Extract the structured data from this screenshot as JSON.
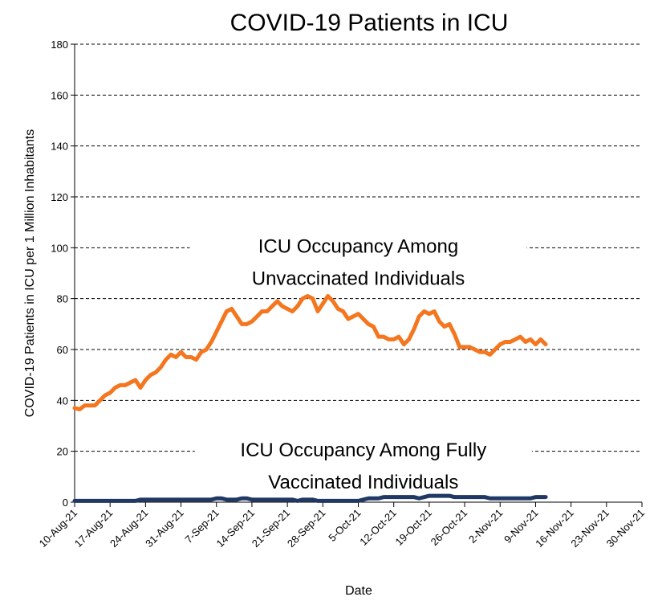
{
  "chart_data": {
    "type": "line",
    "title": "COVID-19 Patients in ICU",
    "x_label": "Date",
    "y_label": "COVID-19 Patients in ICU  per 1 Million Inhabitants",
    "x": [
      "10-Aug-21",
      "11-Aug-21",
      "12-Aug-21",
      "13-Aug-21",
      "14-Aug-21",
      "15-Aug-21",
      "16-Aug-21",
      "17-Aug-21",
      "18-Aug-21",
      "19-Aug-21",
      "20-Aug-21",
      "21-Aug-21",
      "22-Aug-21",
      "23-Aug-21",
      "24-Aug-21",
      "25-Aug-21",
      "26-Aug-21",
      "27-Aug-21",
      "28-Aug-21",
      "29-Aug-21",
      "30-Aug-21",
      "31-Aug-21",
      "1-Sep-21",
      "2-Sep-21",
      "3-Sep-21",
      "4-Sep-21",
      "5-Sep-21",
      "6-Sep-21",
      "7-Sep-21",
      "8-Sep-21",
      "9-Sep-21",
      "10-Sep-21",
      "11-Sep-21",
      "12-Sep-21",
      "13-Sep-21",
      "14-Sep-21",
      "15-Sep-21",
      "16-Sep-21",
      "17-Sep-21",
      "18-Sep-21",
      "19-Sep-21",
      "20-Sep-21",
      "21-Sep-21",
      "22-Sep-21",
      "23-Sep-21",
      "24-Sep-21",
      "25-Sep-21",
      "26-Sep-21",
      "27-Sep-21",
      "28-Sep-21",
      "29-Sep-21",
      "30-Sep-21",
      "1-Oct-21",
      "2-Oct-21",
      "3-Oct-21",
      "4-Oct-21",
      "5-Oct-21",
      "6-Oct-21",
      "7-Oct-21",
      "8-Oct-21",
      "9-Oct-21",
      "10-Oct-21",
      "11-Oct-21",
      "12-Oct-21",
      "13-Oct-21",
      "14-Oct-21",
      "15-Oct-21",
      "16-Oct-21",
      "17-Oct-21",
      "18-Oct-21",
      "19-Oct-21",
      "20-Oct-21",
      "21-Oct-21",
      "22-Oct-21",
      "23-Oct-21",
      "24-Oct-21",
      "25-Oct-21",
      "26-Oct-21",
      "27-Oct-21",
      "28-Oct-21",
      "29-Oct-21",
      "30-Oct-21",
      "31-Oct-21",
      "1-Nov-21",
      "2-Nov-21",
      "3-Nov-21",
      "4-Nov-21",
      "5-Nov-21",
      "6-Nov-21",
      "7-Nov-21",
      "8-Nov-21",
      "9-Nov-21",
      "10-Nov-21",
      "11-Nov-21"
    ],
    "series": [
      {
        "color": "#f4761f",
        "values": [
          37,
          36.5,
          38,
          38,
          38,
          40,
          42,
          43,
          45,
          46,
          46,
          47,
          48,
          45,
          48,
          50,
          51,
          53,
          56,
          58,
          57,
          59,
          57,
          57,
          56,
          59,
          60,
          63,
          67,
          71,
          75,
          76,
          73,
          70,
          70,
          71,
          73,
          75,
          75,
          77,
          79,
          77,
          76,
          75,
          77,
          80,
          81,
          80,
          75,
          78,
          81,
          79,
          76,
          75,
          72,
          73,
          74,
          72,
          70,
          69,
          65,
          65,
          64,
          64,
          65,
          62,
          64,
          68,
          73,
          75,
          74,
          75,
          71,
          69,
          70,
          66,
          61,
          61,
          61,
          60,
          59,
          59,
          58,
          60,
          62,
          63,
          63,
          64,
          65,
          63,
          64,
          62,
          64,
          62
        ]
      },
      {
        "color": "#1f3864",
        "values": [
          0.5,
          0.5,
          0.5,
          0.5,
          0.5,
          0.5,
          0.5,
          0.5,
          0.5,
          0.5,
          0.5,
          0.5,
          0.5,
          1,
          1,
          1,
          1,
          1,
          1,
          1,
          1,
          1,
          1,
          1,
          1,
          1,
          1,
          1,
          1.5,
          1.5,
          1,
          1,
          1,
          1.5,
          1.5,
          1,
          1,
          1,
          1,
          1,
          1,
          1,
          1,
          1,
          0.5,
          1,
          1,
          1,
          0.5,
          0.5,
          0.5,
          0.5,
          0.5,
          0.5,
          0.5,
          0.5,
          0.5,
          1,
          1.5,
          1.5,
          1.5,
          2,
          2,
          2,
          2,
          2,
          2,
          2,
          1.5,
          2,
          2.5,
          2.5,
          2.5,
          2.5,
          2.5,
          2,
          2,
          2,
          2,
          2,
          2,
          2,
          1.5,
          1.5,
          1.5,
          1.5,
          1.5,
          1.5,
          1.5,
          1.5,
          1.5,
          2,
          2,
          2
        ]
      }
    ],
    "xlim": [
      "10-Aug-21",
      "30-Nov-21"
    ],
    "xticks": [
      "10-Aug-21",
      "17-Aug-21",
      "24-Aug-21",
      "31-Aug-21",
      "7-Sep-21",
      "14-Sep-21",
      "21-Sep-21",
      "28-Sep-21",
      "5-Oct-21",
      "12-Oct-21",
      "19-Oct-21",
      "26-Oct-21",
      "2-Nov-21",
      "9-Nov-21",
      "16-Nov-21",
      "23-Nov-21",
      "30-Nov-21"
    ],
    "ylim": [
      0,
      180
    ],
    "yticks": [
      0,
      20,
      40,
      60,
      80,
      100,
      120,
      140,
      160,
      180
    ],
    "grid": true,
    "annotations": [
      {
        "lines": [
          "ICU Occupancy Among",
          "Unvaccinated Individuals"
        ],
        "x": "5-Oct-21",
        "y": 98
      },
      {
        "lines": [
          "ICU Occupancy Among Fully",
          "Vaccinated Individuals"
        ],
        "x": "6-Oct-21",
        "y": 18
      }
    ]
  }
}
